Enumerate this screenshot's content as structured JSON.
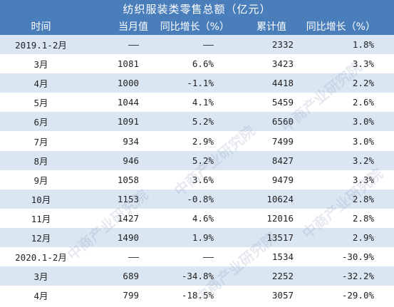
{
  "title": "纺织服装类零售总额（亿元）",
  "headers": [
    "时间",
    "当月值",
    "同比增长（%）",
    "累计值",
    "同比增长（%）"
  ],
  "rows": [
    {
      "time": "2019.1-2月",
      "monthly": "——",
      "monthly_yoy": "——",
      "cumulative": "2332",
      "cumulative_yoy": "1.8%"
    },
    {
      "time": "3月",
      "monthly": "1081",
      "monthly_yoy": "6.6%",
      "cumulative": "3423",
      "cumulative_yoy": "3.3%"
    },
    {
      "time": "4月",
      "monthly": "1000",
      "monthly_yoy": "-1.1%",
      "cumulative": "4418",
      "cumulative_yoy": "2.2%"
    },
    {
      "time": "5月",
      "monthly": "1044",
      "monthly_yoy": "4.1%",
      "cumulative": "5459",
      "cumulative_yoy": "2.6%"
    },
    {
      "time": "6月",
      "monthly": "1091",
      "monthly_yoy": "5.2%",
      "cumulative": "6560",
      "cumulative_yoy": "3.0%"
    },
    {
      "time": "7月",
      "monthly": "934",
      "monthly_yoy": "2.9%",
      "cumulative": "7499",
      "cumulative_yoy": "3.0%"
    },
    {
      "time": "8月",
      "monthly": "946",
      "monthly_yoy": "5.2%",
      "cumulative": "8427",
      "cumulative_yoy": "3.2%"
    },
    {
      "time": "9月",
      "monthly": "1058",
      "monthly_yoy": "3.6%",
      "cumulative": "9479",
      "cumulative_yoy": "3.3%"
    },
    {
      "time": "10月",
      "monthly": "1153",
      "monthly_yoy": "-0.8%",
      "cumulative": "10624",
      "cumulative_yoy": "2.8%"
    },
    {
      "time": "11月",
      "monthly": "1427",
      "monthly_yoy": "4.6%",
      "cumulative": "12016",
      "cumulative_yoy": "2.8%"
    },
    {
      "time": "12月",
      "monthly": "1490",
      "monthly_yoy": "1.9%",
      "cumulative": "13517",
      "cumulative_yoy": "2.9%"
    },
    {
      "time": "2020.1-2月",
      "monthly": "——",
      "monthly_yoy": "——",
      "cumulative": "1534",
      "cumulative_yoy": "-30.9%"
    },
    {
      "time": "3月",
      "monthly": "689",
      "monthly_yoy": "-34.8%",
      "cumulative": "2252",
      "cumulative_yoy": "-32.2%"
    },
    {
      "time": "4月",
      "monthly": "799",
      "monthly_yoy": "-18.5%",
      "cumulative": "3057",
      "cumulative_yoy": "-29.0%"
    }
  ],
  "watermark_text": "中商产业研究院",
  "colors": {
    "header_bg": "#4a7ebb",
    "stripe": "#dbe6f3",
    "text": "#222222"
  }
}
